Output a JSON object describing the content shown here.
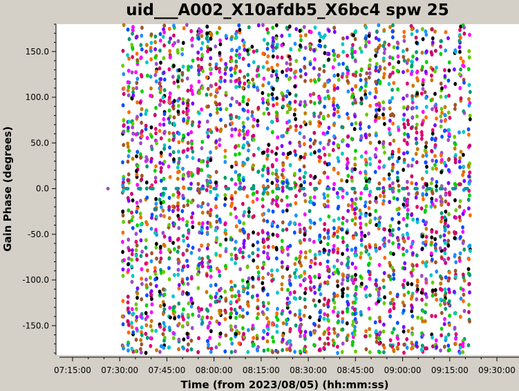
{
  "chart_data": {
    "type": "scatter",
    "title": "uid___A002_X10afdb5_X6bc4 spw 25",
    "xlabel": "Time (from 2023/08/05) (hh:mm:ss)",
    "ylabel": "Gain Phase (degrees)",
    "xlim": [
      "07:10:00",
      "09:34:00"
    ],
    "ylim": [
      -182,
      180
    ],
    "x_ticks": [
      "07:15:00",
      "07:30:00",
      "07:45:00",
      "08:00:00",
      "08:15:00",
      "08:30:00",
      "08:45:00",
      "09:00:00",
      "09:15:00",
      "09:30:00"
    ],
    "y_ticks": [
      "150.0",
      "100.0",
      "50.0",
      "0.0",
      "-50.0",
      "-100.0",
      "-150.0"
    ],
    "grid": false,
    "legend": "none",
    "reference_series": {
      "color": "#009999",
      "y": 0,
      "x_start": "07:26:00",
      "x_end": "09:22:00",
      "points": [
        [
          "07:26:15",
          0
        ],
        [
          "07:32:00",
          0
        ],
        [
          "07:36:00",
          0
        ],
        [
          "07:40:00",
          0
        ],
        [
          "07:44:00",
          0
        ],
        [
          "07:48:00",
          0
        ],
        [
          "07:52:00",
          0
        ],
        [
          "07:56:00",
          0
        ],
        [
          "08:00:00",
          0
        ],
        [
          "08:04:00",
          0
        ],
        [
          "08:08:00",
          0
        ],
        [
          "08:12:00",
          0
        ],
        [
          "08:16:00",
          0
        ],
        [
          "08:20:00",
          0
        ],
        [
          "08:24:00",
          0
        ],
        [
          "08:28:00",
          0
        ],
        [
          "08:32:00",
          0
        ],
        [
          "08:36:00",
          0
        ],
        [
          "08:40:00",
          0
        ],
        [
          "08:44:00",
          0
        ],
        [
          "08:48:00",
          0
        ],
        [
          "08:52:00",
          0
        ],
        [
          "08:56:00",
          0
        ],
        [
          "09:00:00",
          0
        ],
        [
          "09:04:00",
          0
        ],
        [
          "09:08:00",
          0
        ],
        [
          "09:12:00",
          0
        ],
        [
          "09:16:00",
          0
        ],
        [
          "09:20:00",
          0
        ]
      ]
    },
    "antenna_series_colors": [
      "#000000",
      "#e6006e",
      "#00c8c8",
      "#0050ff",
      "#ff6a00",
      "#7a00ff",
      "#00d200",
      "#9b4dca",
      "#c87800",
      "#1e90ff",
      "#009b6e",
      "#ff00ff",
      "#66cc00",
      "#cc0066",
      "#a0522d"
    ],
    "observation_time_range": [
      "07:31:00",
      "09:21:00"
    ],
    "phase_value_range": [
      -180,
      180
    ],
    "approximate_scan_columns_per_15min": 6,
    "description_note": "Dense scatter of gain phase solutions spanning the full phase range across all scans"
  }
}
